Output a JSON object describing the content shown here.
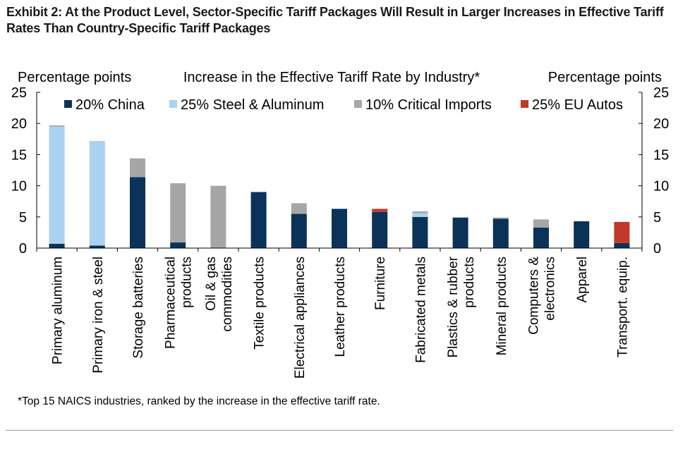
{
  "header": {
    "title": "Exhibit 2: At the Product Level, Sector-Specific Tariff Packages Will Result in Larger Increases in Effective Tariff Rates Than Country-Specific Tariff Packages"
  },
  "colors": {
    "china": "#0b3359",
    "steel": "#a9d3f0",
    "critical": "#a6a6a6",
    "eu_autos": "#c0392b",
    "axis": "#000000",
    "rule": "#999999"
  },
  "chart_data": {
    "type": "bar",
    "stacked": true,
    "title": "Increase in the Effective Tariff Rate by Industry*",
    "ylabel_left": "Percentage points",
    "ylabel_right": "Percentage points",
    "xlabel": "",
    "ylim": [
      0,
      25
    ],
    "yticks": [
      0,
      5,
      10,
      15,
      20,
      25
    ],
    "grid": false,
    "legend_position": "top",
    "categories": [
      "Primary aluminum",
      "Primary iron & steel",
      "Storage batteries",
      "Pharmaceutical\nproducts",
      "Oil & gas\ncommodities",
      "Textile products",
      "Electrical appliances",
      "Leather products",
      "Furniture",
      "Fabricated metals",
      "Plastics & rubber\nproducts",
      "Mineral products",
      "Computers &\nelectronics",
      "Apparel",
      "Transport. equip."
    ],
    "series": [
      {
        "name": "20% China",
        "color_key": "china",
        "values": [
          0.7,
          0.4,
          11.4,
          0.9,
          0.0,
          9.0,
          5.5,
          6.3,
          5.8,
          5.0,
          4.9,
          4.7,
          3.3,
          4.3,
          0.8
        ]
      },
      {
        "name": "25% Steel & Aluminum",
        "color_key": "steel",
        "values": [
          18.8,
          16.8,
          0.0,
          0.0,
          0.0,
          0.0,
          0.0,
          0.0,
          0.0,
          0.6,
          0.0,
          0.0,
          0.0,
          0.0,
          0.0
        ]
      },
      {
        "name": "10% Critical Imports",
        "color_key": "critical",
        "values": [
          0.2,
          0.0,
          3.0,
          9.5,
          10.0,
          0.0,
          1.7,
          0.0,
          0.0,
          0.3,
          0.0,
          0.2,
          1.3,
          0.0,
          0.0
        ]
      },
      {
        "name": "25% EU Autos",
        "color_key": "eu_autos",
        "values": [
          0.0,
          0.0,
          0.0,
          0.0,
          0.0,
          0.0,
          0.0,
          0.0,
          0.5,
          0.0,
          0.0,
          0.0,
          0.0,
          0.0,
          3.4
        ]
      }
    ],
    "footnote": "*Top 15 NAICS industries, ranked by the increase in the effective tariff rate."
  }
}
